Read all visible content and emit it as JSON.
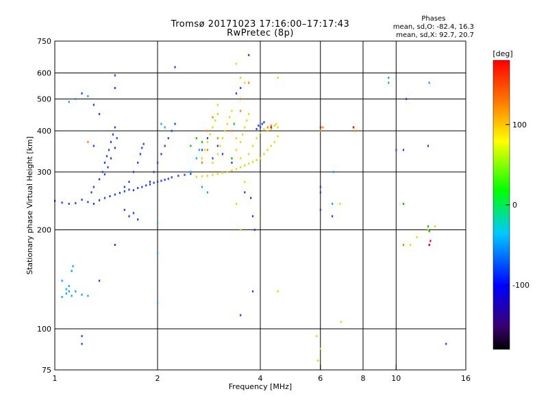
{
  "header": {
    "title_line1": "Tromsø 20171023 17:16:00–17:17:43",
    "title_line2": "RwPretec (8p)",
    "phases_title": "Phases",
    "phases_line1": "mean, sd,O: -82.4, 16.3",
    "phases_line2": "mean, sd,X:  92.7, 20.7"
  },
  "colorbar": {
    "label": "[deg]",
    "ticks": [
      "100",
      "0",
      "-100"
    ],
    "tick_values": [
      100,
      0,
      -100
    ],
    "range": [
      -180,
      180
    ],
    "colors": [
      "#000000",
      "#3a0070",
      "#0000ff",
      "#00c8ff",
      "#00ff00",
      "#ffff00",
      "#ff8000",
      "#ff0000"
    ]
  },
  "chart_data": {
    "type": "scatter",
    "title": "Tromsø 20171023 17:16:00–17:17:43",
    "subtitle": "RwPretec (8p)",
    "xlabel": "Frequency [MHz]",
    "ylabel": "Stationary phase Virtual Height [km]",
    "x_scale": "log",
    "y_scale": "log",
    "xlim": [
      1,
      16
    ],
    "ylim": [
      75,
      750
    ],
    "x_ticks": [
      1,
      2,
      4,
      6,
      8,
      10,
      16
    ],
    "x_tick_labels": [
      "1",
      "2",
      "4",
      "6",
      "8",
      "10",
      "16"
    ],
    "y_ticks": [
      75,
      100,
      200,
      300,
      400,
      500,
      600,
      750
    ],
    "y_tick_labels": [
      "75",
      "100",
      "200",
      "300",
      "400",
      "500",
      "600",
      "750"
    ],
    "grid": true,
    "series": [
      {
        "name": "O",
        "color": "#1a40ff",
        "points": [
          [
            1.0,
            245
          ],
          [
            1.05,
            242
          ],
          [
            1.1,
            240
          ],
          [
            1.15,
            241
          ],
          [
            1.2,
            247
          ],
          [
            1.25,
            243
          ],
          [
            1.3,
            240
          ],
          [
            1.35,
            246
          ],
          [
            1.4,
            250
          ],
          [
            1.45,
            253
          ],
          [
            1.5,
            256
          ],
          [
            1.55,
            259
          ],
          [
            1.6,
            262
          ],
          [
            1.65,
            265
          ],
          [
            1.7,
            264
          ],
          [
            1.75,
            268
          ],
          [
            1.8,
            270
          ],
          [
            1.85,
            273
          ],
          [
            1.9,
            275
          ],
          [
            1.95,
            278
          ],
          [
            2.0,
            280
          ],
          [
            2.05,
            282
          ],
          [
            2.1,
            284
          ],
          [
            2.15,
            286
          ],
          [
            2.2,
            289
          ],
          [
            2.3,
            292
          ],
          [
            2.4,
            294
          ],
          [
            2.5,
            296
          ],
          [
            1.28,
            260
          ],
          [
            1.3,
            270
          ],
          [
            1.35,
            285
          ],
          [
            1.38,
            300
          ],
          [
            1.4,
            320
          ],
          [
            1.42,
            335
          ],
          [
            1.44,
            350
          ],
          [
            1.46,
            370
          ],
          [
            1.48,
            390
          ],
          [
            1.5,
            410
          ],
          [
            1.52,
            380
          ],
          [
            1.5,
            355
          ],
          [
            1.46,
            330
          ],
          [
            1.43,
            310
          ],
          [
            1.4,
            295
          ],
          [
            1.6,
            270
          ],
          [
            1.65,
            280
          ],
          [
            1.7,
            300
          ],
          [
            1.75,
            320
          ],
          [
            1.78,
            340
          ],
          [
            1.8,
            355
          ],
          [
            1.82,
            365
          ],
          [
            1.9,
            280
          ],
          [
            1.95,
            300
          ],
          [
            2.0,
            320
          ],
          [
            2.05,
            340
          ],
          [
            2.1,
            360
          ],
          [
            2.15,
            380
          ],
          [
            2.2,
            400
          ],
          [
            2.25,
            420
          ],
          [
            1.6,
            230
          ],
          [
            1.65,
            220
          ],
          [
            1.7,
            225
          ],
          [
            1.75,
            215
          ],
          [
            1.3,
            480
          ],
          [
            1.35,
            450
          ],
          [
            1.5,
            590
          ],
          [
            1.5,
            540
          ],
          [
            1.2,
            520
          ],
          [
            1.35,
            140
          ],
          [
            1.3,
            360
          ],
          [
            1.5,
            180
          ],
          [
            3.7,
            680
          ],
          [
            3.5,
            540
          ],
          [
            3.4,
            520
          ],
          [
            3.6,
            260
          ],
          [
            3.75,
            250
          ],
          [
            3.8,
            220
          ],
          [
            3.85,
            200
          ],
          [
            4.0,
            410
          ],
          [
            4.05,
            420
          ],
          [
            4.1,
            425
          ],
          [
            3.9,
            405
          ],
          [
            3.95,
            415
          ],
          [
            3.8,
            130
          ],
          [
            3.5,
            110
          ],
          [
            6.0,
            270
          ],
          [
            6.0,
            260
          ],
          [
            6.5,
            220
          ],
          [
            6.0,
            230
          ],
          [
            10.7,
            500
          ],
          [
            10.0,
            350
          ],
          [
            10.5,
            350
          ],
          [
            12.4,
            360
          ],
          [
            12.5,
            180
          ],
          [
            14.0,
            90
          ],
          [
            1.2,
            95
          ],
          [
            1.2,
            90
          ],
          [
            2.25,
            625
          ],
          [
            2.8,
            380
          ],
          [
            2.7,
            350
          ],
          [
            2.9,
            330
          ],
          [
            3.0,
            360
          ],
          [
            3.1,
            340
          ],
          [
            3.3,
            320
          ]
        ]
      },
      {
        "name": "X",
        "color": "#e6d800",
        "points": [
          [
            2.6,
            290
          ],
          [
            2.7,
            291
          ],
          [
            2.8,
            292
          ],
          [
            2.9,
            294
          ],
          [
            3.0,
            296
          ],
          [
            3.1,
            298
          ],
          [
            3.2,
            300
          ],
          [
            3.3,
            303
          ],
          [
            3.4,
            306
          ],
          [
            3.5,
            310
          ],
          [
            3.6,
            314
          ],
          [
            3.7,
            318
          ],
          [
            3.8,
            322
          ],
          [
            3.9,
            326
          ],
          [
            4.0,
            330
          ],
          [
            4.1,
            340
          ],
          [
            4.2,
            350
          ],
          [
            4.3,
            360
          ],
          [
            4.4,
            370
          ],
          [
            4.5,
            385
          ],
          [
            2.9,
            320
          ],
          [
            3.0,
            340
          ],
          [
            3.05,
            360
          ],
          [
            3.1,
            380
          ],
          [
            3.15,
            400
          ],
          [
            3.2,
            420
          ],
          [
            3.25,
            440
          ],
          [
            3.3,
            460
          ],
          [
            3.3,
            330
          ],
          [
            3.4,
            350
          ],
          [
            3.5,
            370
          ],
          [
            3.55,
            390
          ],
          [
            3.6,
            410
          ],
          [
            3.65,
            430
          ],
          [
            3.7,
            450
          ],
          [
            3.7,
            340
          ],
          [
            3.8,
            360
          ],
          [
            3.9,
            380
          ],
          [
            4.0,
            395
          ],
          [
            4.1,
            405
          ],
          [
            4.2,
            400
          ],
          [
            2.7,
            330
          ],
          [
            2.75,
            350
          ],
          [
            2.8,
            370
          ],
          [
            2.85,
            390
          ],
          [
            2.9,
            410
          ],
          [
            2.95,
            430
          ],
          [
            3.0,
            450
          ],
          [
            3.0,
            480
          ],
          [
            3.5,
            580
          ],
          [
            3.6,
            560
          ],
          [
            4.5,
            580
          ],
          [
            4.5,
            410
          ],
          [
            4.45,
            420
          ],
          [
            4.4,
            415
          ],
          [
            4.3,
            405
          ],
          [
            3.4,
            640
          ],
          [
            3.4,
            380
          ],
          [
            3.5,
            330
          ],
          [
            3.6,
            280
          ],
          [
            3.4,
            240
          ],
          [
            3.5,
            200
          ],
          [
            4.5,
            130
          ],
          [
            6.0,
            87
          ],
          [
            5.9,
            80
          ],
          [
            5.85,
            95
          ],
          [
            6.9,
            105
          ],
          [
            6.85,
            240
          ],
          [
            12.4,
            200
          ],
          [
            13.0,
            205
          ],
          [
            11.0,
            180
          ],
          [
            11.5,
            190
          ]
        ]
      },
      {
        "name": "",
        "color": "#00aaff",
        "points": [
          [
            1.05,
            125
          ],
          [
            1.08,
            128
          ],
          [
            1.1,
            130
          ],
          [
            1.12,
            126
          ],
          [
            1.15,
            130
          ],
          [
            1.2,
            127
          ],
          [
            1.25,
            126
          ],
          [
            1.1,
            135
          ],
          [
            1.12,
            150
          ],
          [
            1.13,
            155
          ],
          [
            1.05,
            140
          ],
          [
            1.08,
            132
          ],
          [
            2.0,
            210
          ],
          [
            2.0,
            170
          ],
          [
            2.0,
            120
          ],
          [
            2.7,
            270
          ],
          [
            2.8,
            260
          ],
          [
            2.5,
            300
          ],
          [
            2.6,
            330
          ],
          [
            2.65,
            350
          ],
          [
            6.5,
            240
          ],
          [
            6.55,
            300
          ],
          [
            9.5,
            580
          ],
          [
            9.5,
            560
          ],
          [
            12.5,
            560
          ],
          [
            1.1,
            490
          ],
          [
            1.15,
            500
          ],
          [
            1.25,
            510
          ],
          [
            2.1,
            410
          ],
          [
            2.05,
            420
          ]
        ]
      },
      {
        "name": "",
        "color": "#ff8000",
        "points": [
          [
            2.7,
            320
          ],
          [
            2.8,
            350
          ],
          [
            2.8,
            400
          ],
          [
            2.9,
            440
          ],
          [
            3.0,
            380
          ],
          [
            3.3,
            400
          ],
          [
            3.5,
            500
          ],
          [
            3.7,
            560
          ],
          [
            3.5,
            460
          ],
          [
            4.2,
            410
          ],
          [
            4.3,
            415
          ],
          [
            7.5,
            410
          ],
          [
            7.6,
            400
          ],
          [
            6.0,
            400
          ],
          [
            6.1,
            410
          ],
          [
            1.25,
            370
          ],
          [
            10.5,
            180
          ]
        ]
      },
      {
        "name": "",
        "color": "#00cc00",
        "points": [
          [
            2.5,
            360
          ],
          [
            2.6,
            380
          ],
          [
            2.7,
            370
          ],
          [
            3.35,
            420
          ],
          [
            3.3,
            330
          ],
          [
            12.4,
            205
          ],
          [
            12.5,
            198
          ],
          [
            10.5,
            240
          ]
        ]
      },
      {
        "name": "",
        "color": "#ff0000",
        "points": [
          [
            7.5,
            410
          ],
          [
            6.0,
            410
          ],
          [
            12.5,
            180
          ],
          [
            12.6,
            185
          ],
          [
            4.3,
            410
          ]
        ]
      }
    ]
  }
}
